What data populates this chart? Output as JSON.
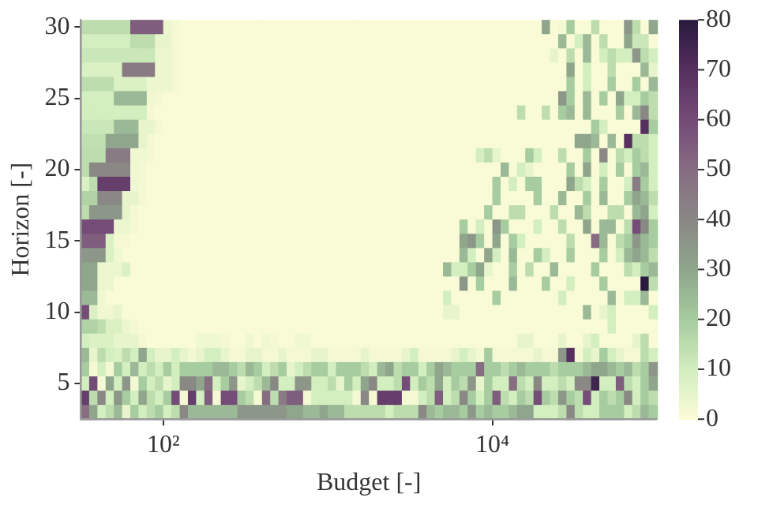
{
  "chart_data": {
    "type": "heatmap",
    "xlabel": "Budget [-]",
    "ylabel": "Horizon [-]",
    "log": "x",
    "x": [
      33.5,
      37.6,
      42.2,
      47.3,
      53.1,
      59.6,
      66.8,
      75,
      84.1,
      94.4,
      105.9,
      118.9,
      133.4,
      149.6,
      167.9,
      188.4,
      211.3,
      237.1,
      266.1,
      298.5,
      335,
      376,
      422,
      473,
      531,
      596,
      668,
      750,
      841,
      944,
      1059,
      1189,
      1334,
      1496,
      1679,
      1884,
      2113,
      2371,
      2661,
      2985,
      3350,
      3758,
      4217,
      4732,
      5309,
      5957,
      6683,
      7499,
      8414,
      9441,
      10593,
      11885,
      13335,
      14962,
      16788,
      18836,
      21135,
      23714,
      26607,
      29854,
      33497,
      37584,
      42170,
      47315,
      53088,
      59566,
      66834,
      74989,
      84140,
      94406
    ],
    "xlim": [
      31.6,
      100000
    ],
    "xticks": [
      {
        "value": 100,
        "label": "10²"
      },
      {
        "value": 10000,
        "label": "10⁴"
      }
    ],
    "y_categories": [
      "30",
      null,
      null,
      null,
      null,
      "25",
      null,
      null,
      null,
      null,
      "20",
      null,
      null,
      null,
      null,
      "15",
      null,
      null,
      null,
      null,
      "10",
      null,
      null,
      null,
      null,
      "5",
      null,
      null
    ],
    "clim": [
      0,
      80
    ],
    "cticks": [
      0,
      10,
      20,
      30,
      40,
      50,
      60,
      70,
      80
    ],
    "colors": [
      "#fcfcd9",
      "#d3eebf",
      "#a6cc9f",
      "#8fa68c",
      "#8a8885",
      "#876d82",
      "#744c77",
      "#56305f",
      "#2a1a3e"
    ],
    "cells": [
      [
        15,
        15,
        15,
        15,
        15,
        15,
        55,
        55,
        55,
        55,
        4,
        2,
        1,
        1,
        1,
        1,
        1,
        1,
        1,
        1,
        1,
        1,
        1,
        1,
        1,
        1,
        1,
        1,
        1,
        1,
        1,
        1,
        1,
        1,
        1,
        1,
        1,
        1,
        1,
        1,
        1,
        1,
        1,
        1,
        1,
        1,
        1,
        1,
        1,
        1,
        1,
        1,
        1,
        1,
        1,
        1,
        30,
        1,
        2,
        20,
        1,
        1,
        15,
        1,
        1,
        1,
        35,
        15,
        1,
        30
      ],
      [
        10,
        10,
        10,
        10,
        10,
        10,
        15,
        15,
        15,
        5,
        5,
        2,
        1,
        1,
        1,
        1,
        1,
        1,
        1,
        1,
        1,
        1,
        1,
        1,
        1,
        1,
        1,
        1,
        1,
        1,
        1,
        1,
        1,
        1,
        1,
        1,
        1,
        1,
        1,
        1,
        1,
        1,
        1,
        1,
        1,
        1,
        1,
        1,
        1,
        1,
        1,
        1,
        1,
        1,
        1,
        1,
        1,
        1,
        25,
        1,
        10,
        25,
        1,
        15,
        1,
        1,
        30,
        12,
        12,
        1
      ],
      [
        12,
        12,
        12,
        12,
        12,
        12,
        12,
        12,
        12,
        4,
        4,
        2,
        1,
        1,
        1,
        1,
        1,
        1,
        1,
        1,
        1,
        1,
        1,
        1,
        1,
        1,
        1,
        1,
        1,
        1,
        1,
        1,
        1,
        1,
        1,
        1,
        1,
        1,
        1,
        1,
        1,
        1,
        1,
        1,
        1,
        1,
        1,
        1,
        1,
        1,
        1,
        1,
        1,
        1,
        1,
        1,
        1,
        5,
        1,
        15,
        1,
        25,
        1,
        10,
        15,
        10,
        10,
        35,
        15,
        10
      ],
      [
        8,
        8,
        8,
        8,
        8,
        45,
        45,
        45,
        45,
        4,
        4,
        2,
        1,
        1,
        1,
        1,
        1,
        1,
        1,
        1,
        1,
        1,
        1,
        1,
        1,
        1,
        1,
        1,
        1,
        1,
        1,
        1,
        1,
        1,
        1,
        1,
        1,
        1,
        1,
        1,
        1,
        1,
        1,
        1,
        1,
        1,
        1,
        1,
        1,
        1,
        1,
        1,
        1,
        1,
        1,
        1,
        1,
        1,
        1,
        30,
        1,
        10,
        1,
        1,
        15,
        1,
        1,
        1,
        25,
        5
      ],
      [
        15,
        15,
        15,
        15,
        8,
        8,
        8,
        8,
        4,
        4,
        4,
        2,
        1,
        1,
        1,
        1,
        1,
        1,
        1,
        1,
        1,
        1,
        1,
        1,
        1,
        1,
        1,
        1,
        1,
        1,
        1,
        1,
        1,
        1,
        1,
        1,
        1,
        1,
        1,
        1,
        1,
        1,
        1,
        1,
        1,
        1,
        1,
        1,
        1,
        1,
        1,
        1,
        1,
        1,
        1,
        1,
        1,
        1,
        1,
        20,
        1,
        10,
        1,
        1,
        20,
        1,
        1,
        20,
        1,
        25
      ],
      [
        10,
        10,
        10,
        10,
        25,
        25,
        25,
        25,
        3,
        2,
        1,
        1,
        1,
        1,
        1,
        1,
        1,
        1,
        1,
        1,
        1,
        1,
        1,
        1,
        1,
        1,
        1,
        1,
        1,
        1,
        1,
        1,
        1,
        1,
        1,
        1,
        1,
        1,
        1,
        1,
        1,
        1,
        1,
        1,
        1,
        1,
        1,
        1,
        1,
        1,
        1,
        1,
        1,
        1,
        1,
        1,
        1,
        1,
        35,
        20,
        1,
        25,
        1,
        20,
        1,
        30,
        10,
        10,
        20,
        15
      ],
      [
        10,
        10,
        10,
        10,
        10,
        10,
        10,
        10,
        2,
        1,
        1,
        1,
        1,
        1,
        1,
        1,
        1,
        1,
        1,
        1,
        1,
        1,
        1,
        1,
        1,
        1,
        1,
        1,
        1,
        1,
        1,
        1,
        1,
        1,
        1,
        1,
        1,
        1,
        1,
        1,
        1,
        1,
        1,
        1,
        1,
        1,
        1,
        1,
        1,
        1,
        1,
        1,
        1,
        15,
        1,
        1,
        15,
        1,
        20,
        25,
        1,
        25,
        1,
        1,
        1,
        20,
        1,
        25,
        40,
        15
      ],
      [
        12,
        12,
        12,
        12,
        25,
        25,
        25,
        5,
        5,
        2,
        1,
        1,
        1,
        1,
        1,
        1,
        1,
        1,
        1,
        1,
        1,
        1,
        1,
        1,
        1,
        1,
        1,
        1,
        1,
        1,
        1,
        1,
        1,
        1,
        1,
        1,
        1,
        1,
        1,
        1,
        1,
        1,
        1,
        1,
        1,
        1,
        1,
        1,
        1,
        1,
        1,
        1,
        1,
        1,
        1,
        1,
        1,
        1,
        1,
        1,
        1,
        1,
        20,
        10,
        1,
        1,
        1,
        1,
        70,
        20
      ],
      [
        14,
        14,
        14,
        30,
        30,
        30,
        30,
        5,
        2,
        1,
        1,
        1,
        1,
        1,
        1,
        1,
        1,
        1,
        1,
        1,
        1,
        1,
        1,
        1,
        1,
        1,
        1,
        1,
        1,
        1,
        1,
        1,
        1,
        1,
        1,
        1,
        1,
        1,
        1,
        1,
        1,
        1,
        1,
        1,
        1,
        1,
        1,
        1,
        1,
        1,
        1,
        1,
        1,
        1,
        1,
        1,
        1,
        1,
        1,
        1,
        30,
        30,
        25,
        1,
        25,
        1,
        70,
        15,
        15,
        10
      ],
      [
        15,
        15,
        15,
        45,
        45,
        45,
        3,
        3,
        2,
        1,
        1,
        1,
        1,
        1,
        1,
        1,
        1,
        1,
        1,
        1,
        1,
        1,
        1,
        1,
        1,
        1,
        1,
        1,
        1,
        1,
        1,
        1,
        1,
        1,
        1,
        1,
        1,
        1,
        1,
        1,
        1,
        1,
        1,
        1,
        1,
        1,
        1,
        1,
        10,
        15,
        5,
        1,
        1,
        1,
        20,
        10,
        1,
        1,
        15,
        1,
        1,
        20,
        1,
        40,
        1,
        15,
        10,
        20,
        15,
        10
      ],
      [
        15,
        40,
        40,
        40,
        40,
        40,
        3,
        2,
        1,
        1,
        1,
        1,
        1,
        1,
        1,
        1,
        1,
        1,
        1,
        1,
        1,
        1,
        1,
        1,
        1,
        1,
        1,
        1,
        1,
        1,
        1,
        1,
        1,
        1,
        1,
        1,
        1,
        1,
        1,
        1,
        1,
        1,
        1,
        1,
        1,
        1,
        1,
        1,
        1,
        1,
        1,
        25,
        1,
        10,
        5,
        1,
        1,
        1,
        1,
        20,
        1,
        30,
        1,
        10,
        1,
        20,
        1,
        20,
        25,
        10
      ],
      [
        8,
        15,
        65,
        65,
        65,
        65,
        3,
        2,
        1,
        1,
        1,
        1,
        1,
        1,
        1,
        1,
        1,
        1,
        1,
        1,
        1,
        1,
        1,
        1,
        1,
        1,
        1,
        1,
        1,
        1,
        1,
        1,
        1,
        1,
        1,
        1,
        1,
        1,
        1,
        1,
        1,
        1,
        1,
        1,
        1,
        1,
        1,
        1,
        1,
        1,
        20,
        1,
        10,
        1,
        20,
        20,
        1,
        1,
        1,
        30,
        15,
        10,
        1,
        20,
        1,
        1,
        10,
        45,
        20,
        10
      ],
      [
        18,
        18,
        40,
        40,
        40,
        5,
        5,
        2,
        1,
        1,
        1,
        1,
        1,
        1,
        1,
        1,
        1,
        1,
        1,
        1,
        1,
        1,
        1,
        1,
        1,
        1,
        1,
        1,
        1,
        1,
        1,
        1,
        1,
        1,
        1,
        1,
        1,
        1,
        1,
        1,
        1,
        1,
        1,
        1,
        1,
        1,
        1,
        1,
        1,
        1,
        20,
        1,
        1,
        1,
        1,
        20,
        1,
        1,
        25,
        1,
        1,
        20,
        1,
        25,
        1,
        1,
        20,
        30,
        25,
        15
      ],
      [
        15,
        35,
        35,
        35,
        35,
        5,
        2,
        1,
        1,
        1,
        1,
        1,
        1,
        1,
        1,
        1,
        1,
        1,
        1,
        1,
        1,
        1,
        1,
        1,
        1,
        1,
        1,
        1,
        1,
        1,
        1,
        1,
        1,
        1,
        1,
        1,
        1,
        1,
        1,
        1,
        1,
        1,
        1,
        1,
        1,
        1,
        1,
        1,
        1,
        20,
        1,
        1,
        15,
        15,
        1,
        1,
        1,
        15,
        1,
        1,
        25,
        15,
        1,
        1,
        15,
        15,
        1,
        25,
        30,
        10
      ],
      [
        60,
        60,
        60,
        60,
        4,
        4,
        2,
        1,
        1,
        1,
        1,
        1,
        1,
        1,
        1,
        1,
        1,
        1,
        1,
        1,
        1,
        1,
        1,
        1,
        1,
        1,
        1,
        1,
        1,
        1,
        1,
        1,
        1,
        1,
        1,
        1,
        1,
        1,
        1,
        1,
        1,
        1,
        1,
        1,
        1,
        1,
        20,
        1,
        10,
        1,
        35,
        20,
        1,
        1,
        1,
        10,
        1,
        1,
        15,
        1,
        1,
        30,
        1,
        25,
        25,
        1,
        15,
        60,
        40,
        20
      ],
      [
        55,
        55,
        55,
        8,
        2,
        2,
        1,
        1,
        1,
        1,
        1,
        1,
        1,
        1,
        1,
        1,
        1,
        1,
        1,
        1,
        1,
        1,
        1,
        1,
        1,
        1,
        1,
        1,
        1,
        1,
        1,
        1,
        1,
        1,
        1,
        1,
        1,
        1,
        1,
        1,
        1,
        1,
        1,
        1,
        1,
        1,
        30,
        35,
        20,
        1,
        30,
        1,
        20,
        10,
        1,
        1,
        1,
        1,
        1,
        15,
        1,
        1,
        50,
        25,
        1,
        15,
        20,
        35,
        25,
        20
      ],
      [
        35,
        35,
        35,
        8,
        3,
        1,
        1,
        1,
        1,
        1,
        1,
        1,
        1,
        1,
        1,
        1,
        1,
        1,
        1,
        1,
        1,
        1,
        1,
        1,
        1,
        1,
        1,
        1,
        1,
        1,
        1,
        1,
        1,
        1,
        1,
        1,
        1,
        1,
        1,
        1,
        1,
        1,
        1,
        1,
        1,
        1,
        25,
        10,
        1,
        30,
        10,
        1,
        25,
        1,
        1,
        20,
        10,
        1,
        1,
        20,
        1,
        1,
        1,
        20,
        1,
        10,
        25,
        30,
        25,
        15
      ],
      [
        30,
        30,
        4,
        4,
        4,
        8,
        1,
        1,
        1,
        1,
        1,
        1,
        1,
        1,
        1,
        1,
        1,
        1,
        1,
        1,
        1,
        1,
        1,
        1,
        1,
        1,
        1,
        1,
        1,
        1,
        1,
        1,
        1,
        1,
        1,
        1,
        1,
        1,
        1,
        1,
        1,
        1,
        1,
        1,
        25,
        10,
        10,
        20,
        30,
        5,
        1,
        1,
        20,
        1,
        15,
        1,
        1,
        25,
        1,
        1,
        1,
        1,
        20,
        1,
        1,
        1,
        15,
        10,
        20,
        25
      ],
      [
        30,
        30,
        4,
        4,
        1,
        1,
        1,
        1,
        1,
        1,
        1,
        1,
        1,
        1,
        1,
        1,
        1,
        1,
        1,
        1,
        1,
        1,
        1,
        1,
        1,
        1,
        1,
        1,
        1,
        1,
        1,
        1,
        1,
        1,
        1,
        1,
        1,
        1,
        1,
        1,
        1,
        1,
        1,
        1,
        1,
        1,
        35,
        1,
        20,
        1,
        1,
        1,
        25,
        1,
        1,
        1,
        20,
        1,
        1,
        10,
        1,
        1,
        1,
        20,
        1,
        1,
        1,
        1,
        80,
        15
      ],
      [
        25,
        25,
        3,
        1,
        1,
        1,
        1,
        1,
        1,
        1,
        1,
        1,
        1,
        1,
        1,
        1,
        1,
        1,
        1,
        1,
        1,
        1,
        1,
        1,
        1,
        1,
        1,
        1,
        1,
        1,
        1,
        1,
        1,
        1,
        1,
        1,
        1,
        1,
        1,
        1,
        1,
        1,
        1,
        1,
        10,
        1,
        1,
        1,
        1,
        1,
        20,
        1,
        1,
        1,
        1,
        1,
        1,
        1,
        10,
        1,
        1,
        1,
        1,
        1,
        25,
        1,
        10,
        10,
        25,
        1
      ],
      [
        60,
        8,
        3,
        3,
        5,
        1,
        1,
        1,
        1,
        1,
        1,
        1,
        1,
        1,
        1,
        1,
        1,
        1,
        1,
        1,
        1,
        1,
        1,
        1,
        1,
        1,
        1,
        1,
        1,
        1,
        1,
        1,
        1,
        1,
        1,
        1,
        1,
        1,
        1,
        1,
        1,
        1,
        1,
        1,
        5,
        5,
        1,
        1,
        1,
        1,
        1,
        1,
        1,
        1,
        1,
        1,
        1,
        1,
        1,
        1,
        1,
        25,
        1,
        5,
        10,
        1,
        1,
        1,
        1,
        10
      ],
      [
        18,
        18,
        15,
        8,
        8,
        4,
        2,
        1,
        1,
        1,
        1,
        1,
        1,
        1,
        1,
        1,
        1,
        1,
        1,
        1,
        1,
        1,
        1,
        1,
        1,
        1,
        1,
        1,
        1,
        1,
        1,
        1,
        1,
        1,
        1,
        1,
        1,
        1,
        1,
        1,
        1,
        1,
        1,
        1,
        1,
        1,
        1,
        1,
        1,
        1,
        1,
        1,
        1,
        1,
        1,
        1,
        1,
        1,
        1,
        1,
        1,
        1,
        1,
        1,
        10,
        1,
        1,
        1,
        1,
        1
      ],
      [
        10,
        8,
        8,
        8,
        5,
        5,
        5,
        2,
        1,
        1,
        1,
        1,
        1,
        1,
        3,
        3,
        3,
        2,
        1,
        1,
        3,
        1,
        3,
        2,
        1,
        1,
        3,
        3,
        1,
        1,
        1,
        1,
        1,
        1,
        1,
        1,
        1,
        1,
        1,
        1,
        1,
        1,
        1,
        1,
        1,
        1,
        1,
        1,
        1,
        1,
        1,
        1,
        1,
        5,
        5,
        1,
        1,
        1,
        5,
        1,
        1,
        5,
        10,
        1,
        1,
        1,
        1,
        5,
        15,
        1
      ],
      [
        25,
        5,
        15,
        10,
        8,
        15,
        10,
        30,
        10,
        5,
        5,
        10,
        5,
        2,
        5,
        10,
        10,
        5,
        2,
        2,
        5,
        5,
        2,
        2,
        5,
        2,
        2,
        2,
        5,
        5,
        2,
        2,
        2,
        2,
        5,
        2,
        2,
        2,
        2,
        5,
        10,
        2,
        2,
        2,
        2,
        5,
        10,
        5,
        2,
        20,
        2,
        2,
        2,
        2,
        2,
        5,
        2,
        2,
        35,
        70,
        2,
        10,
        5,
        20,
        10,
        5,
        2,
        2,
        15,
        10
      ],
      [
        20,
        2,
        10,
        2,
        20,
        10,
        25,
        10,
        15,
        10,
        20,
        10,
        20,
        20,
        20,
        20,
        25,
        25,
        20,
        15,
        25,
        20,
        10,
        15,
        20,
        5,
        10,
        15,
        20,
        20,
        10,
        20,
        20,
        20,
        15,
        10,
        25,
        30,
        15,
        20,
        20,
        10,
        20,
        30,
        25,
        20,
        20,
        20,
        50,
        20,
        20,
        15,
        20,
        25,
        20,
        20,
        20,
        15,
        20,
        20,
        20,
        25,
        30,
        30,
        25,
        20,
        25,
        15,
        20,
        35
      ],
      [
        10,
        60,
        2,
        30,
        10,
        35,
        2,
        20,
        10,
        15,
        5,
        10,
        40,
        40,
        30,
        50,
        10,
        20,
        35,
        5,
        10,
        15,
        25,
        40,
        10,
        10,
        35,
        35,
        10,
        10,
        15,
        5,
        20,
        10,
        30,
        40,
        10,
        10,
        15,
        60,
        10,
        20,
        15,
        30,
        10,
        20,
        15,
        35,
        5,
        20,
        10,
        10,
        50,
        15,
        10,
        40,
        10,
        10,
        15,
        10,
        40,
        40,
        75,
        10,
        10,
        55,
        15,
        10,
        20,
        30
      ],
      [
        65,
        15,
        40,
        10,
        35,
        20,
        10,
        30,
        15,
        10,
        20,
        60,
        2,
        65,
        10,
        55,
        2,
        60,
        60,
        20,
        15,
        2,
        50,
        15,
        45,
        55,
        55,
        2,
        10,
        10,
        10,
        10,
        10,
        2,
        40,
        2,
        65,
        65,
        65,
        2,
        2,
        10,
        15,
        55,
        10,
        15,
        40,
        20,
        10,
        20,
        55,
        15,
        10,
        20,
        15,
        60,
        20,
        15,
        35,
        20,
        15,
        60,
        10,
        20,
        15,
        20,
        40,
        10,
        20,
        15
      ],
      [
        50,
        30,
        10,
        15,
        25,
        5,
        20,
        10,
        15,
        20,
        10,
        15,
        40,
        25,
        25,
        25,
        25,
        25,
        25,
        35,
        35,
        35,
        35,
        35,
        35,
        30,
        30,
        25,
        25,
        30,
        25,
        25,
        15,
        15,
        15,
        15,
        15,
        10,
        15,
        15,
        15,
        40,
        25,
        20,
        25,
        25,
        20,
        35,
        20,
        25,
        20,
        20,
        25,
        30,
        30,
        10,
        10,
        10,
        15,
        40,
        15,
        10,
        10,
        20,
        20,
        20,
        10,
        15,
        25,
        20
      ]
    ]
  }
}
